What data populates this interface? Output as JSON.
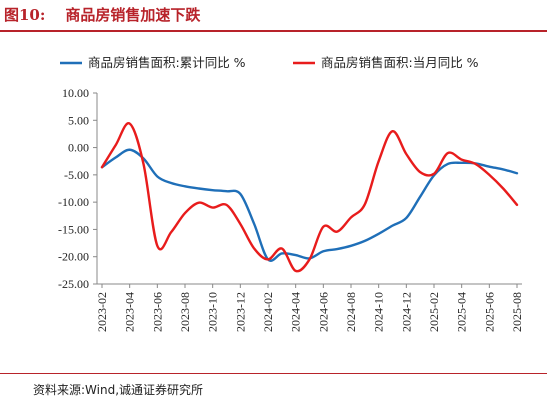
{
  "figure": {
    "number": "图10:",
    "title": "商品房销售加速下跌",
    "source": "资料来源:Wind,诚通证券研究所"
  },
  "colors": {
    "accent": "#b8232a",
    "series_cumulative": "#1f6fb8",
    "series_monthly": "#e81c1c"
  },
  "chart_data": {
    "type": "line",
    "x": [
      "2023-02",
      "2023-03",
      "2023-04",
      "2023-05",
      "2023-06",
      "2023-07",
      "2023-08",
      "2023-09",
      "2023-10",
      "2023-11",
      "2023-12",
      "2024-01",
      "2024-02",
      "2024-03",
      "2024-04",
      "2024-05",
      "2024-06",
      "2024-07",
      "2024-08",
      "2024-09",
      "2024-10",
      "2024-11",
      "2024-12",
      "2025-01",
      "2025-02",
      "2025-03",
      "2025-04",
      "2025-05",
      "2025-06",
      "2025-07",
      "2025-08"
    ],
    "x_tick_labels": [
      "2023-02",
      "2023-04",
      "2023-06",
      "2023-08",
      "2023-10",
      "2023-12",
      "2024-02",
      "2024-04",
      "2024-06",
      "2024-08",
      "2024-10",
      "2024-12",
      "2025-02",
      "2025-04",
      "2025-06",
      "2025-08"
    ],
    "y_tick_labels": [
      "10.00",
      "5.00",
      "0.00",
      "-5.00",
      "-10.00",
      "-15.00",
      "-20.00",
      "-25.00"
    ],
    "ylim": [
      -25,
      10
    ],
    "legend_position": "top",
    "series": [
      {
        "name": "商品房销售面积:累计同比 %",
        "values": [
          -3.6,
          -1.8,
          -0.4,
          -2.0,
          -5.3,
          -6.5,
          -7.1,
          -7.5,
          -7.8,
          -8.0,
          -8.5,
          -14.0,
          -20.5,
          -19.4,
          -19.7,
          -20.3,
          -19.0,
          -18.6,
          -18.0,
          -17.1,
          -15.8,
          -14.3,
          -12.9,
          -9.0,
          -5.1,
          -3.0,
          -2.8,
          -2.9,
          -3.5,
          -4.0,
          -4.7
        ]
      },
      {
        "name": "商品房销售面积:当月同比 %",
        "values": [
          -3.6,
          0.5,
          4.4,
          -3.0,
          -18.0,
          -15.5,
          -12.0,
          -10.1,
          -11.0,
          -10.5,
          -14.0,
          -18.5,
          -20.5,
          -18.5,
          -22.6,
          -20.5,
          -14.5,
          -15.4,
          -12.8,
          -10.4,
          -2.5,
          3.0,
          -1.2,
          -4.5,
          -4.8,
          -1.0,
          -2.2,
          -3.0,
          -5.0,
          -7.5,
          -10.5
        ]
      }
    ]
  }
}
